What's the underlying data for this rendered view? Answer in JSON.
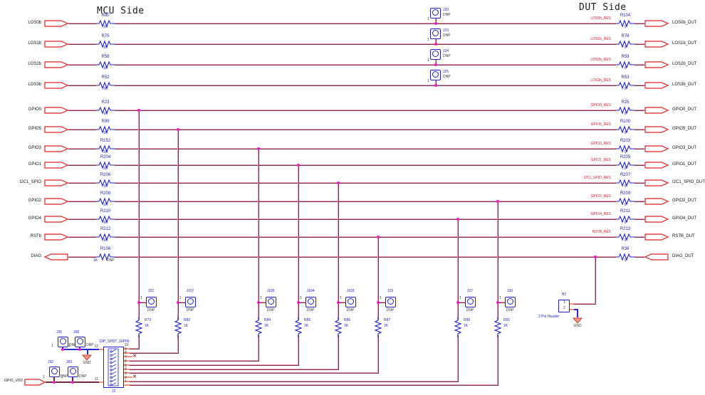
{
  "titles": {
    "mcu": "MCU Side",
    "dut": "DUT Side"
  },
  "channels": [
    {
      "port": "LOS0b",
      "res_l": "R80",
      "val_l": "1K",
      "jumper": "J20",
      "dnp": "DNP",
      "net": "LOS0b_RES",
      "res_r": "R104",
      "val_r": "0",
      "port_r": "LOS0b_DUT"
    },
    {
      "port": "LOS1b",
      "res_l": "R75",
      "val_l": "1K",
      "jumper": "J23",
      "dnp": "DNP",
      "net": "LOS1b_RES",
      "res_r": "R76",
      "val_r": "0",
      "port_r": "LOS1b_DUT"
    },
    {
      "port": "LOS2b",
      "res_l": "R58",
      "val_l": "1K",
      "jumper": "J24",
      "dnp": "DNP",
      "net": "LOS2b_RES",
      "res_r": "R59",
      "val_r": "0",
      "port_r": "LOS2b_DUT"
    },
    {
      "port": "LOS3b",
      "res_l": "R52",
      "val_l": "1K",
      "jumper": "J25",
      "dnp": "DNP",
      "net": "LOS3b_RES",
      "res_r": "R53",
      "val_r": "0",
      "port_r": "LOS3b_DUT"
    },
    {
      "port": "GPIO0",
      "res_l": "R23",
      "val_l": "1K",
      "column": "J22",
      "net": "GPIO0_RES",
      "res_r": "R25",
      "val_r": "0",
      "port_r": "GPIO0_DUT"
    },
    {
      "port": "GPIO5",
      "res_l": "R99",
      "val_l": "1K",
      "column": "J107",
      "net": "GPIO5_RES",
      "res_r": "R100",
      "val_r": "0",
      "port_r": "GPIO5_DUT"
    },
    {
      "port": "GPIO3",
      "res_l": "R152",
      "val_l": "1K",
      "column": "J105",
      "net": "GPIO3_RES",
      "res_r": "R203",
      "val_r": "0",
      "port_r": "GPIO3_DUT"
    },
    {
      "port": "GPIO1",
      "res_l": "R204",
      "val_l": "1K",
      "column": "J104",
      "net": "GPIO1_RES",
      "res_r": "R205",
      "val_r": "0",
      "port_r": "GPIO1_DUT"
    },
    {
      "port": "I2C1_SPIO",
      "res_l": "R206",
      "val_l": "1K",
      "column": "J103",
      "net": "I2C1_SPIO_RES",
      "res_r": "R207",
      "val_r": "0",
      "port_r": "I2C1_SPIO_DUT"
    },
    {
      "port": "GPIO2",
      "res_l": "R208",
      "val_l": "1K",
      "column": "J30",
      "net": "GPIO2_RES",
      "res_r": "R209",
      "val_r": "0",
      "port_r": "GPIO2_DUT"
    },
    {
      "port": "GPIO4",
      "res_l": "R210",
      "val_l": "1K",
      "column": "J27",
      "net": "GPIO4_RES",
      "res_r": "R211",
      "val_r": "0",
      "port_r": "GPIO4_DUT"
    },
    {
      "port": "RSTb",
      "res_l": "R212",
      "val_l": "1K",
      "column": "J19",
      "net": "RSTB_RES",
      "res_r": "R213",
      "val_r": "0",
      "port_r": "RSTB_DUT"
    },
    {
      "port": "DIAG",
      "res_l": "R106",
      "val_l": "1K",
      "dnp_l": "DNP",
      "column": "H2",
      "res_r": "R36",
      "val_r": "0",
      "port_r": "DIAG_DUT",
      "dir": "left"
    }
  ],
  "columns": [
    {
      "jumper": "J22",
      "dnp": "DNP",
      "res": "R73",
      "val": "1K",
      "pin": "10"
    },
    {
      "jumper": "J107",
      "dnp": "DNP",
      "res": "R82",
      "val": "1K",
      "pin": "9"
    },
    {
      "jumper": "J105",
      "dnp": "DNP",
      "res": "R84",
      "val": "1K",
      "pin": "7"
    },
    {
      "jumper": "J104",
      "dnp": "DNP",
      "res": "R85",
      "val": "1K",
      "pin": "6"
    },
    {
      "jumper": "J103",
      "dnp": "DNP",
      "res": "R86",
      "val": "1K",
      "pin": "5"
    },
    {
      "jumper": "J19",
      "dnp": "DNP",
      "res": "R87",
      "val": "1K",
      "pin": "4"
    },
    {
      "jumper": "J27",
      "dnp": "DNP",
      "res": "R90",
      "val": "1K",
      "pin": "2"
    },
    {
      "jumper": "J30",
      "dnp": "DNP",
      "res": "R91",
      "val": "1K",
      "pin": "1"
    }
  ],
  "dip": {
    "type": "DIP_SPDT_10PIN",
    "ref": "J2",
    "pins_right": [
      "10",
      "9",
      "8",
      "7",
      "6",
      "5",
      "4",
      "3",
      "2",
      "1"
    ],
    "pins_left": [
      "12",
      "11"
    ],
    "nc_pins": [
      "8",
      "3"
    ]
  },
  "power_jumpers": {
    "top": [
      {
        "ref": "J36",
        "dnp": "DNP"
      },
      {
        "ref": "J68",
        "dnp": "DNP"
      }
    ],
    "bottom": [
      {
        "ref": "J32",
        "dnp": "DNP"
      },
      {
        "ref": "J63",
        "dnp": "DNP"
      }
    ],
    "gnd": "GND",
    "vdd_port": "GPIO_VDD"
  },
  "header_h2": {
    "ref": "H2",
    "desc": "2 Pin Header",
    "pin1": "1",
    "pin2": "2",
    "gnd": "GND"
  },
  "misc": {
    "pin1": "1"
  },
  "colors": {
    "wire": "#7c3048",
    "highlight": "#e89ab8",
    "symbol_blue": "#2222cc",
    "port_red": "#e02020",
    "net_red": "#cf2136",
    "junction": "#f018c8"
  }
}
